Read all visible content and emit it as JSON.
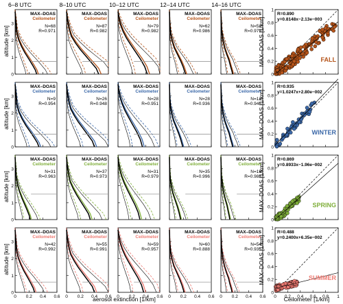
{
  "figure": {
    "column_titles": [
      "6–8 UTC",
      "8–10 UTC",
      "10–12 UTC",
      "12–14 UTC",
      "14–16 UTC"
    ],
    "profile_ylabel": "altitude [km]",
    "profile_xlabel": "aerosol extinction [1/km]",
    "legend_maxdoas": "MAX–DOAS",
    "legend_ceilometer": "Ceilometer",
    "scatter_ylabel": "MAX–DOAS [1/km]",
    "scatter_xlabel": "Ceilometer [1/km]",
    "profile_xticks": [
      "0",
      "0.2",
      "0.4",
      "0.6"
    ],
    "profile_yticks": [
      "0",
      "1",
      "2",
      "3"
    ],
    "scatter_ticks": [
      "0",
      "0.2",
      "0.4",
      "0.6",
      "0.8",
      "1"
    ]
  },
  "colors": {
    "maxdoas": "#000000",
    "fall": "#b5541a",
    "winter": "#3b68a8",
    "spring": "#7fae3a",
    "summer": "#ee7a72",
    "hline": "#9a9a9a"
  },
  "chart_data": [
    {
      "type": "line",
      "title": "Vertical aerosol extinction profiles, MAX-DOAS vs Ceilometer",
      "xlabel": "aerosol extinction [1/km]",
      "ylabel": "altitude [km]",
      "xlim": [
        0,
        0.6
      ],
      "ylim": [
        0,
        3.8
      ],
      "rows": [
        {
          "season": "FALL",
          "panels": [
            {
              "time": "6–8 UTC",
              "N": "N=68",
              "R": "R=0.971"
            },
            {
              "time": "8–10 UTC",
              "N": "N=87",
              "R": "R=0.982"
            },
            {
              "time": "10–12 UTC",
              "N": "N=79",
              "R": "R=0.982"
            },
            {
              "time": "12–14 UTC",
              "N": "N=62",
              "R": "R=0.986"
            },
            {
              "time": "14–16 UTC",
              "N": "N=52",
              "R": "R=0.979"
            }
          ]
        },
        {
          "season": "WINTER",
          "panels": [
            {
              "time": "6–8 UTC",
              "N": "N=9",
              "R": "R=0.954"
            },
            {
              "time": "8–10 UTC",
              "N": "N=26",
              "R": "R=0.948"
            },
            {
              "time": "10–12 UTC",
              "N": "N=28",
              "R": "R=0.951"
            },
            {
              "time": "12–14 UTC",
              "N": "N=28",
              "R": "R=0.936"
            },
            {
              "time": "14–16 UTC",
              "N": "N=12",
              "R": "R=0.946"
            }
          ]
        },
        {
          "season": "SPRING",
          "panels": [
            {
              "time": "6–8 UTC",
              "N": "N=31",
              "R": "R=0.963"
            },
            {
              "time": "8–10 UTC",
              "N": "N=37",
              "R": "R=0.973"
            },
            {
              "time": "10–12 UTC",
              "N": "N=31",
              "R": "R=0.979"
            },
            {
              "time": "12–14 UTC",
              "N": "N=35",
              "R": "R=0.996"
            },
            {
              "time": "14–16 UTC",
              "N": "N=19",
              "R": "R=0.988"
            }
          ]
        },
        {
          "season": "SUMMER",
          "panels": [
            {
              "time": "6–8 UTC",
              "N": "N=42",
              "R": "R=0.992"
            },
            {
              "time": "8–10 UTC",
              "N": "N=55",
              "R": "R=0.991"
            },
            {
              "time": "10–12 UTC",
              "N": "N=59",
              "R": "R=0.957"
            },
            {
              "time": "12–14 UTC",
              "N": "N=60",
              "R": "R=0.888"
            },
            {
              "time": "14–16 UTC",
              "N": "N=54",
              "R": "R=0.935"
            }
          ]
        }
      ]
    },
    {
      "type": "scatter",
      "xlabel": "Ceilometer [1/km]",
      "ylabel": "MAX–DOAS [1/km]",
      "xlim": [
        0,
        1
      ],
      "ylim": [
        0,
        1
      ],
      "panels": [
        {
          "season": "FALL",
          "R": "R=0.890",
          "fit": "y=0.8148x−2.13e−003",
          "slope": 0.8148,
          "intercept": -0.00213
        },
        {
          "season": "WINTER",
          "R": "R=0.935",
          "fit": "y=1.0247x+2.80e−002",
          "slope": 1.0247,
          "intercept": 0.028
        },
        {
          "season": "SPRING",
          "R": "R=0.869",
          "fit": "y=0.8933x−1.96e−002",
          "slope": 0.8933,
          "intercept": -0.0196
        },
        {
          "season": "SUMMER",
          "R": "R=0.488",
          "fit": "y=0.2400x+6.35e−002",
          "slope": 0.24,
          "intercept": 0.0635
        }
      ]
    }
  ]
}
